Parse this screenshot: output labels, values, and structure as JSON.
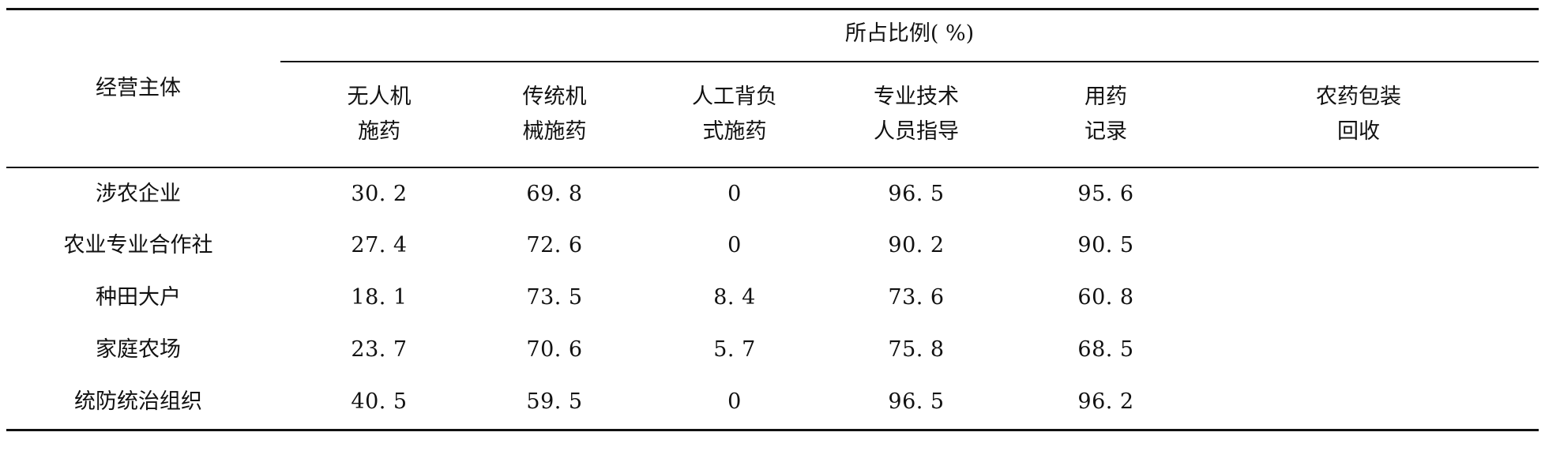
{
  "table": {
    "group_header": "所占比例( %)",
    "entity_header": "经营主体",
    "columns": [
      {
        "line1": "无人机",
        "line2": "施药"
      },
      {
        "line1": "传统机",
        "line2": "械施药"
      },
      {
        "line1": "人工背负",
        "line2": "式施药"
      },
      {
        "line1": "专业技术",
        "line2": "人员指导"
      },
      {
        "line1": "用药",
        "line2": "记录"
      },
      {
        "line1": "农药包装",
        "line2": "回收"
      }
    ],
    "rows": [
      {
        "label": "涉农企业",
        "values": [
          "30. 2",
          "69. 8",
          "0",
          "96. 5",
          "95. 6",
          ""
        ]
      },
      {
        "label": "农业专业合作社",
        "values": [
          "27. 4",
          "72. 6",
          "0",
          "90. 2",
          "90. 5",
          ""
        ]
      },
      {
        "label": "种田大户",
        "values": [
          "18. 1",
          "73. 5",
          "8. 4",
          "73. 6",
          "60. 8",
          ""
        ]
      },
      {
        "label": "家庭农场",
        "values": [
          "23. 7",
          "70. 6",
          "5. 7",
          "75. 8",
          "68. 5",
          ""
        ]
      },
      {
        "label": "统防统治组织",
        "values": [
          "40. 5",
          "59. 5",
          "0",
          "96. 5",
          "96. 2",
          ""
        ]
      }
    ]
  }
}
